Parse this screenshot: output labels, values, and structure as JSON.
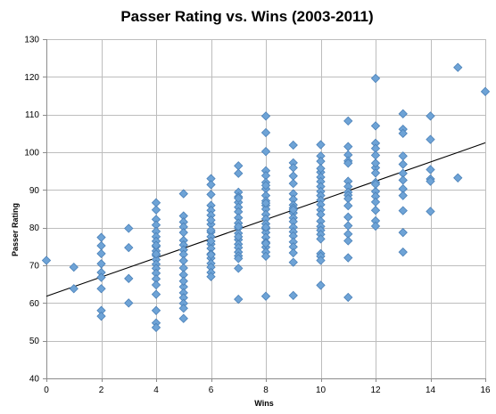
{
  "chart_data": {
    "type": "scatter",
    "title": "Passer Rating vs. Wins (2003-2011)",
    "xlabel": "Wins",
    "ylabel": "Passer Rating",
    "xlim": [
      0,
      16
    ],
    "ylim": [
      40,
      130
    ],
    "x_ticks": [
      0,
      2,
      4,
      6,
      8,
      10,
      12,
      14,
      16
    ],
    "y_ticks": [
      40,
      50,
      60,
      70,
      80,
      90,
      100,
      110,
      120,
      130
    ],
    "grid": true,
    "legend": "none",
    "marker": "diamond",
    "colors": {
      "marker_fill": "#6ea3d6",
      "marker_stroke": "#4a80b8",
      "trendline": "#000000",
      "grid": "#bdbdbd"
    },
    "trendline": {
      "type": "linear",
      "x": [
        0,
        16
      ],
      "y": [
        61.8,
        102.5
      ]
    },
    "series": [
      {
        "x": [
          0,
          1,
          1,
          2,
          2,
          2,
          2,
          2,
          2,
          2,
          2,
          2,
          3,
          3,
          3,
          3,
          4,
          4,
          4,
          4,
          4,
          4,
          4,
          4,
          4,
          4,
          4,
          4,
          4,
          4,
          4,
          4,
          4,
          4,
          4,
          4,
          4,
          4,
          5,
          5,
          5,
          5,
          5,
          5,
          5,
          5,
          5,
          5,
          5,
          5,
          5,
          5,
          5,
          5,
          5,
          5,
          5,
          6,
          6,
          6,
          6,
          6,
          6,
          6,
          6,
          6,
          6,
          6,
          6,
          6,
          6,
          6,
          6,
          6,
          6,
          6,
          6,
          6,
          7,
          7,
          7,
          7,
          7,
          7,
          7,
          7,
          7,
          7,
          7,
          7,
          7,
          7,
          7,
          7,
          7,
          7,
          7,
          7,
          7,
          7,
          8,
          8,
          8,
          8,
          8,
          8,
          8,
          8,
          8,
          8,
          8,
          8,
          8,
          8,
          8,
          8,
          8,
          8,
          8,
          8,
          8,
          8,
          8,
          8,
          8,
          8,
          9,
          9,
          9,
          9,
          9,
          9,
          9,
          9,
          9,
          9,
          9,
          9,
          9,
          9,
          9,
          9,
          9,
          9,
          9,
          9,
          9,
          10,
          10,
          10,
          10,
          10,
          10,
          10,
          10,
          10,
          10,
          10,
          10,
          10,
          10,
          10,
          10,
          10,
          10,
          10,
          10,
          10,
          10,
          10,
          11,
          11,
          11,
          11,
          11,
          11,
          11,
          11,
          11,
          11,
          11,
          11,
          11,
          11,
          11,
          11,
          11,
          12,
          12,
          12,
          12,
          12,
          12,
          12,
          12,
          12,
          12,
          12,
          12,
          12,
          12,
          12,
          12,
          13,
          13,
          13,
          13,
          13,
          13,
          13,
          13,
          13,
          13,
          13,
          13,
          14,
          14,
          14,
          14,
          14,
          14,
          15,
          15,
          16
        ],
        "y": [
          71.3,
          69.5,
          63.8,
          77.4,
          75.2,
          73.1,
          70.4,
          68.1,
          66.8,
          63.8,
          58.0,
          56.5,
          79.8,
          74.7,
          66.5,
          60.0,
          86.6,
          84.7,
          82.2,
          80.7,
          79.0,
          77.6,
          76.4,
          75.0,
          73.8,
          72.6,
          71.5,
          70.3,
          69.2,
          67.9,
          66.4,
          64.8,
          62.3,
          58.0,
          54.7,
          53.5,
          75.3,
          73.0,
          89.0,
          83.1,
          81.5,
          80.2,
          78.7,
          76.6,
          75.4,
          74.1,
          72.9,
          71.2,
          69.3,
          67.5,
          64.3,
          62.7,
          61.4,
          59.9,
          58.6,
          55.9,
          65.8,
          93.0,
          91.4,
          88.8,
          85.9,
          84.6,
          83.3,
          80.9,
          78.8,
          77.6,
          75.6,
          74.5,
          73.0,
          71.9,
          70.5,
          69.5,
          68.1,
          67.0,
          82.0,
          79.3,
          76.4,
          72.8,
          96.4,
          94.4,
          89.4,
          88.2,
          86.7,
          85.4,
          84.2,
          82.6,
          81.2,
          79.9,
          78.5,
          76.8,
          75.6,
          74.7,
          73.5,
          72.5,
          71.8,
          61.0,
          87.8,
          80.3,
          77.6,
          69.2,
          109.6,
          105.2,
          100.2,
          95.1,
          93.8,
          92.0,
          90.3,
          88.5,
          87.1,
          85.9,
          84.9,
          83.5,
          82.3,
          81.0,
          79.7,
          78.7,
          77.4,
          76.1,
          74.8,
          73.5,
          72.4,
          61.8,
          91.2,
          86.5,
          80.1,
          75.8,
          101.9,
          97.2,
          95.9,
          93.7,
          91.7,
          89.0,
          87.5,
          86.0,
          85.2,
          83.9,
          82.6,
          81.6,
          80.1,
          78.9,
          77.8,
          76.2,
          74.9,
          73.3,
          70.8,
          62.0,
          84.7,
          102.0,
          99.0,
          97.6,
          94.7,
          93.4,
          92.2,
          90.9,
          89.6,
          88.5,
          87.3,
          86.1,
          84.7,
          83.5,
          81.7,
          80.3,
          79.3,
          78.2,
          77.0,
          73.1,
          72.4,
          71.3,
          64.7,
          95.7,
          108.3,
          101.5,
          99.3,
          97.7,
          97.1,
          92.3,
          90.9,
          89.4,
          88.6,
          87.7,
          82.8,
          80.5,
          78.3,
          76.5,
          72.0,
          61.5,
          85.8,
          119.6,
          107.0,
          102.4,
          101.0,
          99.2,
          95.9,
          94.5,
          92.0,
          89.6,
          88.3,
          86.8,
          84.6,
          81.8,
          80.4,
          91.5,
          97.1,
          110.2,
          106.1,
          105.0,
          99.0,
          96.8,
          94.4,
          92.6,
          90.3,
          88.5,
          84.5,
          78.7,
          73.5,
          109.6,
          103.4,
          95.4,
          92.9,
          92.3,
          84.3,
          122.5,
          93.2,
          116.1
        ]
      }
    ]
  }
}
